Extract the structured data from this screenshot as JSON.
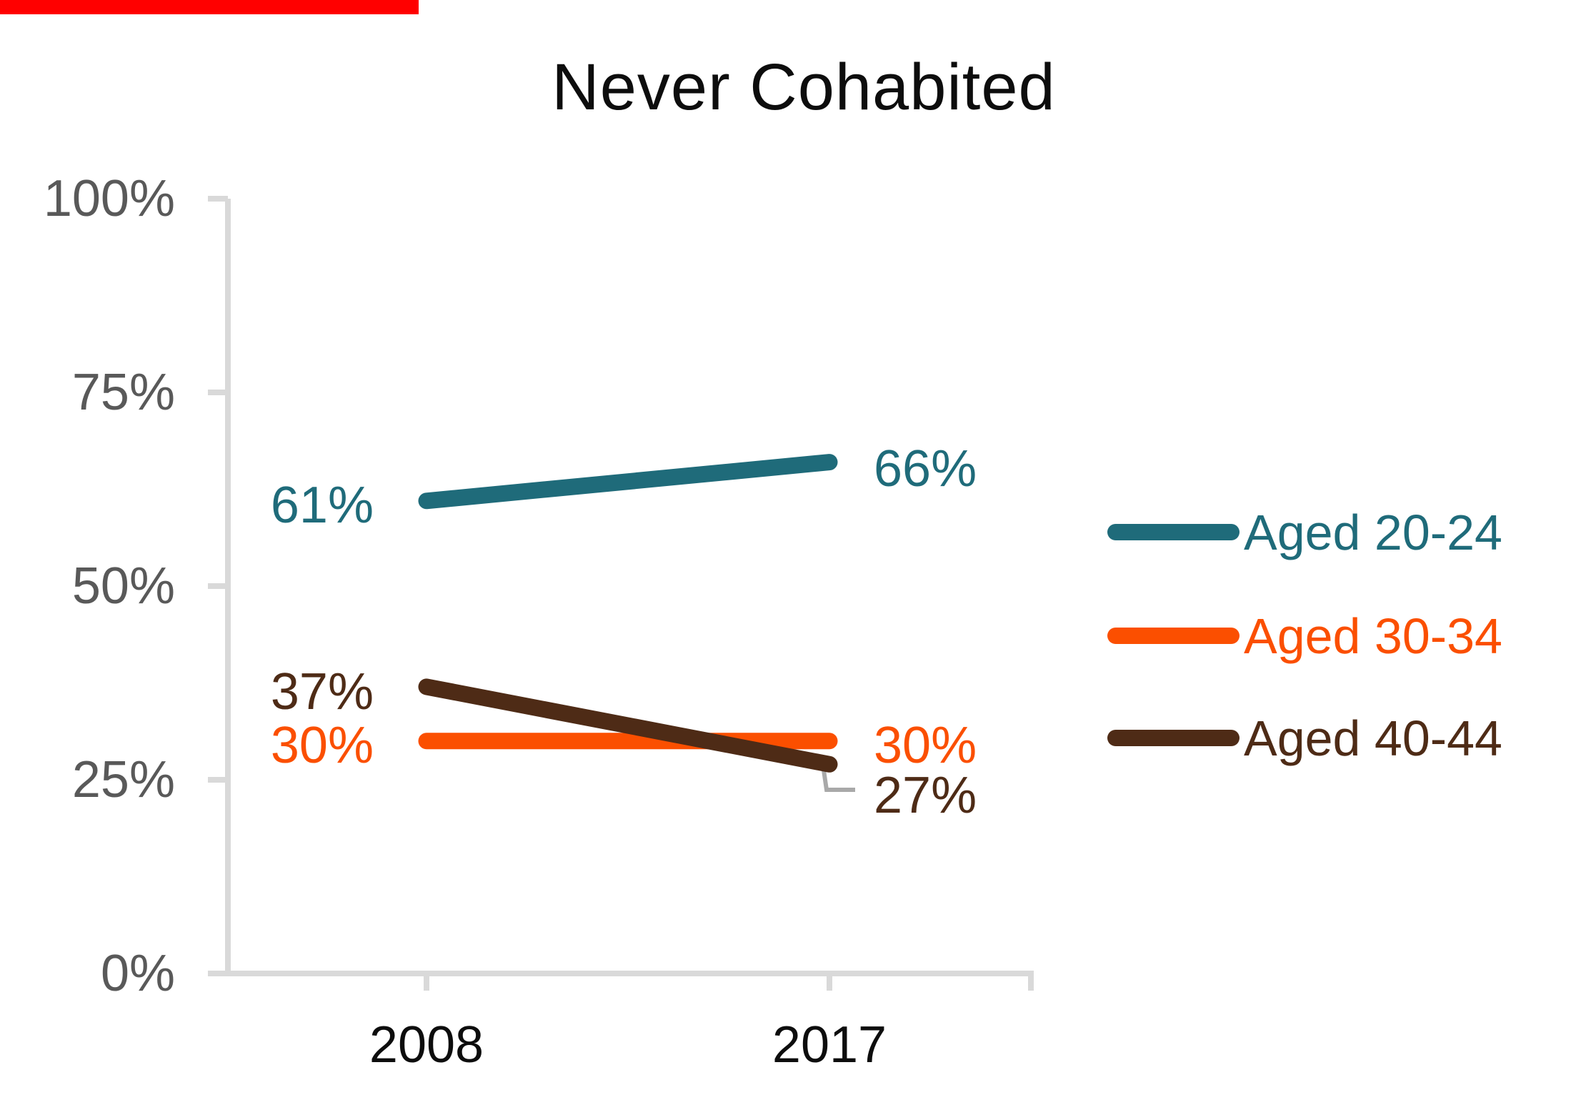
{
  "page": {
    "background": "#ffffff"
  },
  "video_progress_bar": {
    "color": "#ff0000"
  },
  "chart_data": {
    "type": "line",
    "title": "Never Cohabited",
    "categories": [
      "2008",
      "2017"
    ],
    "xlabel": "",
    "ylabel": "",
    "grid": "off",
    "y_axis": {
      "tick_labels": [
        "100%",
        "75%",
        "50%",
        "25%",
        "0%"
      ],
      "tick_values": [
        100,
        75,
        50,
        25,
        0
      ],
      "range": [
        0,
        100
      ],
      "axis_color": "#d9d9d9",
      "tick_label_color": "#595959"
    },
    "series": [
      {
        "name": "Aged 20-24",
        "color": "#1f6b7a",
        "values": [
          61,
          66
        ],
        "point_labels": [
          "61%",
          "66%"
        ]
      },
      {
        "name": "Aged 30-34",
        "color": "#fb4f00",
        "values": [
          30,
          30
        ],
        "point_labels": [
          "30%",
          "30%"
        ]
      },
      {
        "name": "Aged 40-44",
        "color": "#4e2b16",
        "values": [
          37,
          27
        ],
        "point_labels": [
          "37%",
          "27%"
        ]
      }
    ],
    "legend": {
      "position": "right",
      "entries": [
        {
          "label": "Aged 20-24",
          "color": "#1f6b7a"
        },
        {
          "label": "Aged 30-34",
          "color": "#fb4f00"
        },
        {
          "label": "Aged 40-44",
          "color": "#4e2b16"
        }
      ]
    },
    "annotations": {
      "leader_line": {
        "color": "#a9a9a9",
        "note": "connects Aged 40-44 endpoint to its 27% label"
      }
    }
  }
}
